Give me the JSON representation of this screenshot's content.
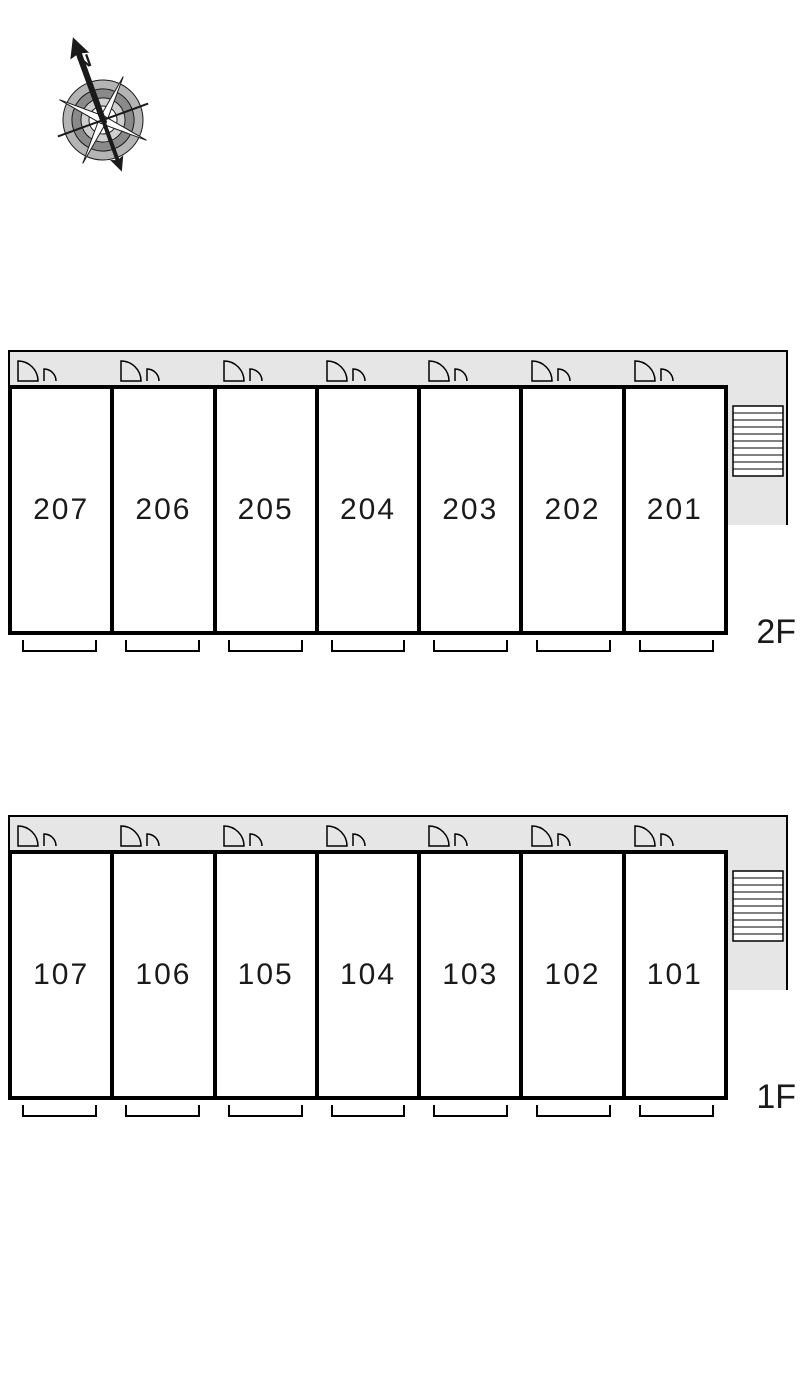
{
  "compass": {
    "north_label": "N",
    "rotation_deg": -20,
    "ring_outer_color": "#b4b4b4",
    "ring_mid_color": "#8a8a8a",
    "ring_inner_color": "#cfcfcf",
    "arrow_color": "#1a1a1a",
    "minor_needle_stroke": "#1a1a1a"
  },
  "building": {
    "corridor_color": "#e6e6e6",
    "wall_color": "#000000",
    "unit_bg": "#ffffff",
    "label_color": "#1a1a1a",
    "label_fontsize": 30,
    "floor_label_fontsize": 34,
    "unit_wall_width": 4,
    "floors": [
      {
        "label": "2F",
        "units": [
          "207",
          "206",
          "205",
          "204",
          "203",
          "202",
          "201"
        ]
      },
      {
        "label": "1F",
        "units": [
          "107",
          "106",
          "105",
          "104",
          "103",
          "102",
          "101"
        ]
      }
    ]
  }
}
